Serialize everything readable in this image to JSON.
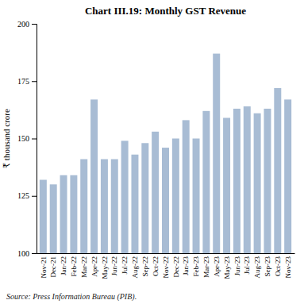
{
  "chart_data": {
    "type": "bar",
    "title": "Chart III.19: Monthly GST Revenue",
    "ylabel": "₹ thousand crore",
    "annotations": [
      "Source: Press Information Bureau (PIB)."
    ],
    "categories": [
      "Nov-21",
      "Dec-21",
      "Jan-22",
      "Feb-22",
      "Mar-22",
      "Apr-22",
      "May-22",
      "Jun-22",
      "Jul-22",
      "Aug-22",
      "Sep-22",
      "Oct-22",
      "Nov-22",
      "Dec-22",
      "Jan-23",
      "Feb-23",
      "Mar-23",
      "Apr-23",
      "May-23",
      "Jun-23",
      "Jul-23",
      "Aug-23",
      "Sep-23",
      "Oct-23",
      "Nov-23"
    ],
    "values": [
      132,
      130,
      134,
      134,
      141,
      167,
      141,
      141,
      149,
      143,
      148,
      153,
      146,
      150,
      158,
      150,
      162,
      187,
      159,
      163,
      164,
      161,
      163,
      172,
      167
    ],
    "color": "#a8bcd4",
    "ylim": [
      100,
      200
    ],
    "yticks": [
      100,
      125,
      150,
      175,
      200
    ],
    "grid": false
  }
}
